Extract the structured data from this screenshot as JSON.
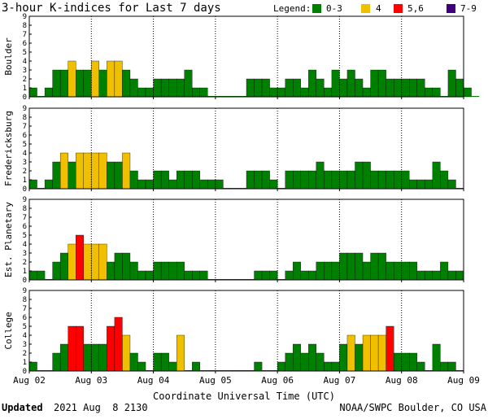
{
  "title": "3-hour K-indices for Last 7 days",
  "legend": {
    "label": "Legend:",
    "items": [
      {
        "label": "0-3",
        "color": "#008000"
      },
      {
        "label": "4",
        "color": "#f0c000"
      },
      {
        "label": "5,6",
        "color": "#ff0000"
      },
      {
        "label": "7-9",
        "color": "#400080"
      }
    ]
  },
  "footer": {
    "updated_label": "Updated",
    "updated_value": "2021 Aug  8 2130",
    "credit": "NOAA/SWPC Boulder, CO USA"
  },
  "chart_data": {
    "type": "bar",
    "xlabel": "Coordinate Universal Time (UTC)",
    "x_ticks": [
      "Aug 02",
      "Aug 03",
      "Aug 04",
      "Aug 05",
      "Aug 06",
      "Aug 07",
      "Aug 08",
      "Aug 09"
    ],
    "ylim": [
      0,
      9
    ],
    "y_ticks": [
      0,
      1,
      2,
      3,
      4,
      5,
      6,
      7,
      8,
      9
    ],
    "bins_per_day": 8,
    "series": [
      {
        "name": "Boulder",
        "values": [
          1,
          0,
          1,
          3,
          3,
          4,
          3,
          3,
          4,
          3,
          4,
          4,
          3,
          2,
          1,
          1,
          2,
          2,
          2,
          2,
          3,
          1,
          1,
          0,
          0,
          0,
          0,
          0,
          2,
          2,
          2,
          1,
          1,
          2,
          2,
          1,
          3,
          2,
          1,
          3,
          2,
          3,
          2,
          1,
          3,
          3,
          2,
          2,
          2,
          2,
          2,
          1,
          1,
          0,
          3,
          2,
          1,
          0
        ]
      },
      {
        "name": "Fredericksburg",
        "values": [
          1,
          0,
          1,
          3,
          4,
          3,
          4,
          4,
          4,
          4,
          3,
          3,
          4,
          2,
          1,
          1,
          2,
          2,
          1,
          2,
          2,
          2,
          1,
          1,
          1,
          0,
          0,
          0,
          2,
          2,
          2,
          1,
          0,
          2,
          2,
          2,
          2,
          3,
          2,
          2,
          2,
          2,
          3,
          3,
          2,
          2,
          2,
          2,
          2,
          1,
          1,
          1,
          3,
          2,
          1,
          0
        ]
      },
      {
        "name": "Est. Planetary",
        "values": [
          1,
          1,
          0,
          2,
          3,
          4,
          5,
          4,
          4,
          4,
          2,
          3,
          3,
          2,
          1,
          1,
          2,
          2,
          2,
          2,
          1,
          1,
          1,
          0,
          0,
          0,
          0,
          0,
          0,
          1,
          1,
          1,
          0,
          1,
          2,
          1,
          1,
          2,
          2,
          2,
          3,
          3,
          3,
          2,
          3,
          3,
          2,
          2,
          2,
          2,
          1,
          1,
          1,
          2,
          1,
          1
        ]
      },
      {
        "name": "College",
        "values": [
          1,
          0,
          0,
          2,
          3,
          5,
          5,
          3,
          3,
          3,
          5,
          6,
          4,
          2,
          1,
          0,
          2,
          2,
          1,
          4,
          0,
          1,
          0,
          0,
          0,
          0,
          0,
          0,
          0,
          1,
          0,
          0,
          1,
          2,
          3,
          2,
          3,
          2,
          1,
          1,
          3,
          4,
          3,
          4,
          4,
          4,
          5,
          2,
          2,
          2,
          1,
          0,
          3,
          1,
          1,
          0
        ]
      }
    ]
  }
}
